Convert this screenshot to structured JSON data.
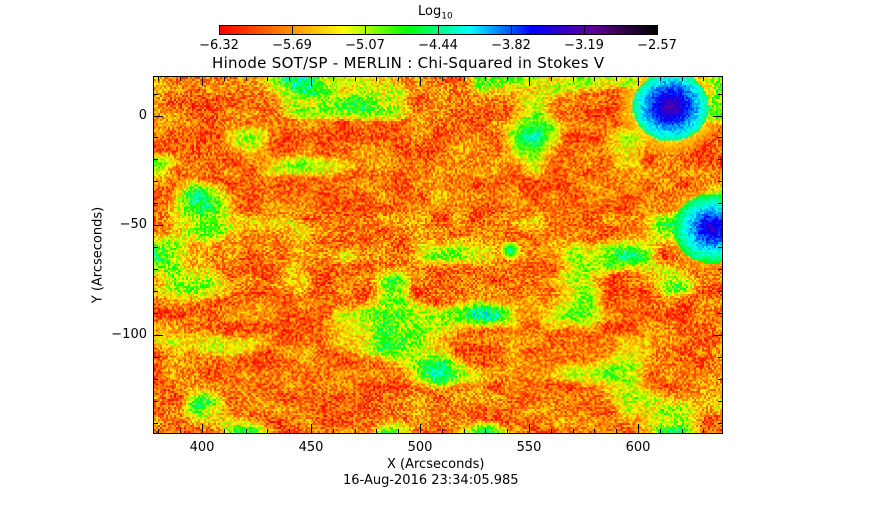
{
  "chart_data": {
    "type": "heatmap",
    "title": "Hinode SOT/SP - MERLIN : Chi-Squared in Stokes V",
    "xlabel": "X (Arcseconds)",
    "ylabel": "Y (Arcseconds)",
    "xlim": [
      377.5,
      639
    ],
    "ylim": [
      -145,
      18
    ],
    "x_ticks": [
      400,
      450,
      500,
      550,
      600
    ],
    "x_tick_labels": [
      "400",
      "450",
      "500",
      "550",
      "600"
    ],
    "y_ticks": [
      0,
      -50,
      -100
    ],
    "y_tick_labels": [
      "0",
      "−50",
      "−100"
    ],
    "colorbar": {
      "title_base": "Log",
      "title_sub": "10",
      "range": [
        -6.32,
        -2.57
      ],
      "tick_labels": [
        "−6.32",
        "−5.69",
        "−5.07",
        "−4.44",
        "−3.82",
        "−3.19",
        "−2.57"
      ],
      "colors": [
        "#ff0000",
        "#ff8000",
        "#ffff00",
        "#00ff00",
        "#00ffff",
        "#0000ff",
        "#600090",
        "#000000"
      ]
    },
    "features": [
      {
        "name": "sunspot",
        "x": 615,
        "y": 5,
        "peak": -3.0
      },
      {
        "name": "sunspot",
        "x": 634,
        "y": -51,
        "peak": -3.2
      },
      {
        "name": "pore",
        "x": 541,
        "y": -61,
        "peak": -4.0
      }
    ],
    "timestamp": "16-Aug-2016 23:34:05.985"
  }
}
